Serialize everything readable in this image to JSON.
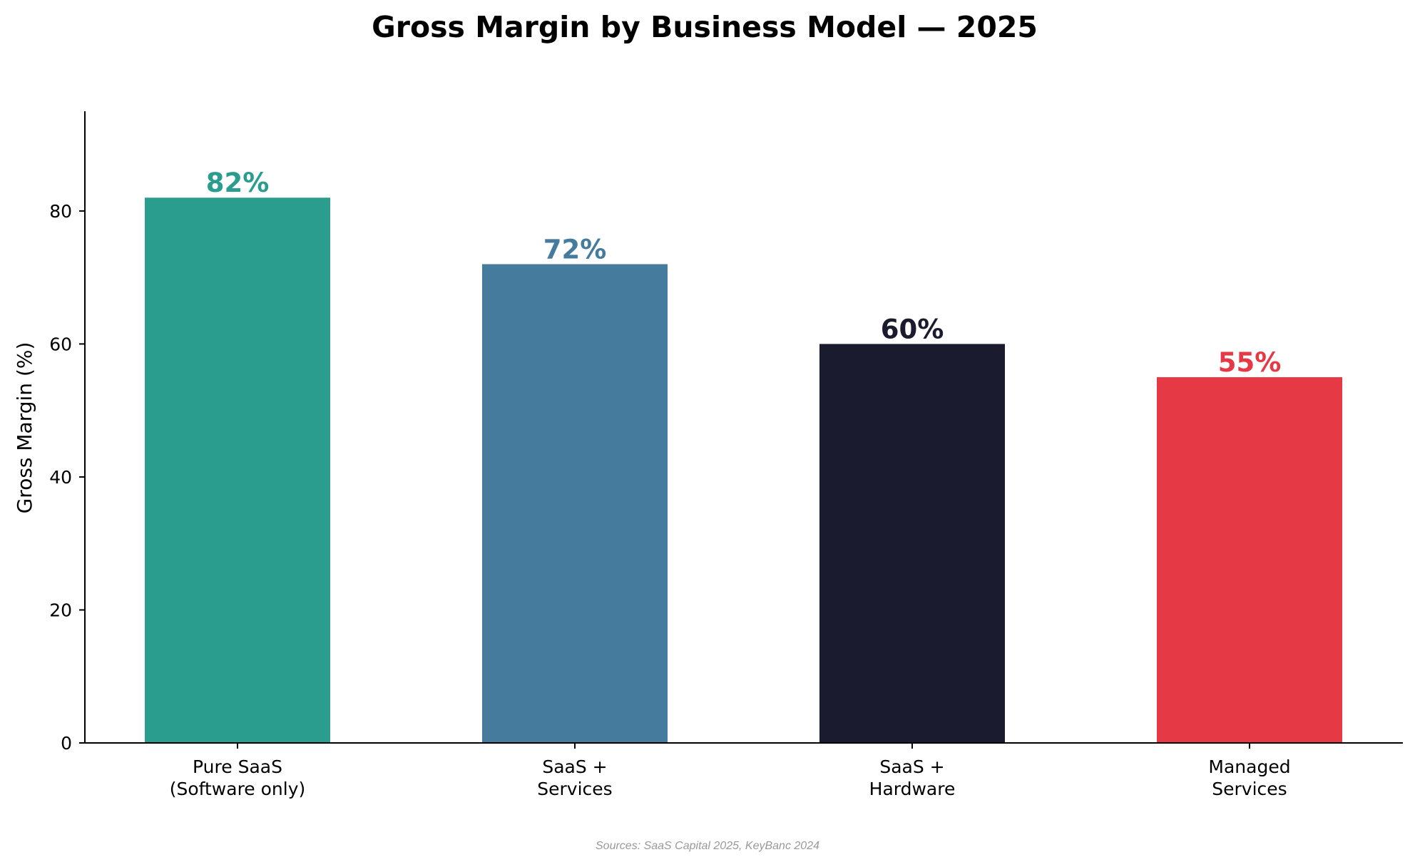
{
  "chart_data": {
    "type": "bar",
    "title": "Gross Margin by Business Model — 2025",
    "ylabel": "Gross Margin (%)",
    "xlabel": "",
    "categories": [
      [
        "Pure SaaS",
        "(Software only)"
      ],
      [
        "SaaS +",
        "Services"
      ],
      [
        "SaaS +",
        "Hardware"
      ],
      [
        "Managed",
        "Services"
      ]
    ],
    "values": [
      82,
      72,
      60,
      55
    ],
    "value_labels": [
      "82%",
      "72%",
      "60%",
      "55%"
    ],
    "colors": [
      "#2a9d8f",
      "#457b9d",
      "#1b1b2f",
      "#e63946"
    ],
    "ylim": [
      0,
      95
    ],
    "yticks": [
      0,
      20,
      40,
      60,
      80
    ],
    "grid": false,
    "legend": "none",
    "source": "Sources: SaaS Capital 2025, KeyBanc 2024"
  }
}
